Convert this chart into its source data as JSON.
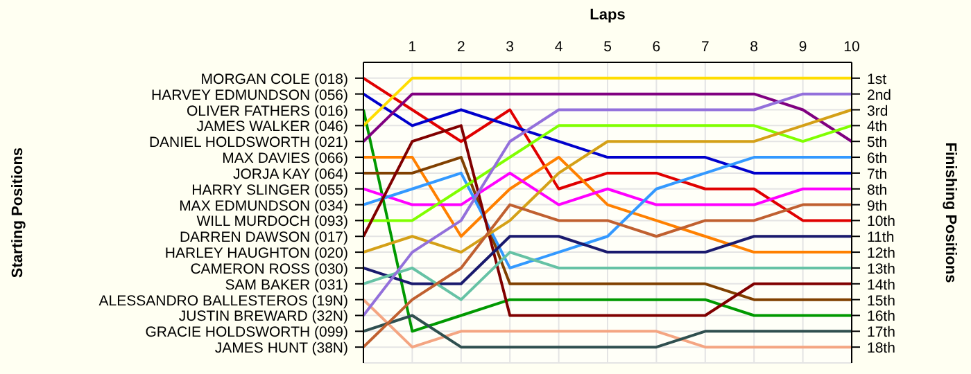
{
  "chart_data": {
    "type": "line",
    "xlabel": "Laps",
    "ylabel": "Finishing Positions",
    "annotations": [
      "Starting Positions"
    ],
    "x": [
      0,
      1,
      2,
      3,
      4,
      5,
      6,
      7,
      8,
      9,
      10
    ],
    "xlim": [
      0,
      10
    ],
    "xticks": [
      1,
      2,
      3,
      4,
      5,
      6,
      7,
      8,
      9,
      10
    ],
    "ylim": [
      19,
      0
    ],
    "yticks": [
      {
        "value": 1,
        "label": "1st"
      },
      {
        "value": 2,
        "label": "2nd"
      },
      {
        "value": 3,
        "label": "3rd"
      },
      {
        "value": 4,
        "label": "4th"
      },
      {
        "value": 5,
        "label": "5th"
      },
      {
        "value": 6,
        "label": "6th"
      },
      {
        "value": 7,
        "label": "7th"
      },
      {
        "value": 8,
        "label": "8th"
      },
      {
        "value": 9,
        "label": "9th"
      },
      {
        "value": 10,
        "label": "10th"
      },
      {
        "value": 11,
        "label": "11th"
      },
      {
        "value": 12,
        "label": "12th"
      },
      {
        "value": 13,
        "label": "13th"
      },
      {
        "value": 14,
        "label": "14th"
      },
      {
        "value": 15,
        "label": "15th"
      },
      {
        "value": 16,
        "label": "16th"
      },
      {
        "value": 17,
        "label": "17th"
      },
      {
        "value": 18,
        "label": "18th"
      }
    ],
    "grid": true,
    "line_style": "solid",
    "series": [
      {
        "name": "MORGAN COLE (018)",
        "color": "#e00000",
        "values": [
          1,
          3,
          5,
          3,
          8,
          7,
          7,
          8,
          8,
          10,
          10
        ]
      },
      {
        "name": "HARVEY EDMUNDSON (056)",
        "color": "#0000cc",
        "values": [
          2,
          4,
          3,
          4,
          5,
          6,
          6,
          6,
          7,
          7,
          7
        ]
      },
      {
        "name": "OLIVER FATHERS (016)",
        "color": "#009900",
        "values": [
          3,
          17,
          16,
          15,
          15,
          15,
          15,
          15,
          16,
          16,
          16
        ]
      },
      {
        "name": "JAMES WALKER (046)",
        "color": "#ffdd00",
        "values": [
          4,
          1,
          1,
          1,
          1,
          1,
          1,
          1,
          1,
          1,
          1
        ]
      },
      {
        "name": "DANIEL HOLDSWORTH (021)",
        "color": "#800080",
        "values": [
          5,
          2,
          2,
          2,
          2,
          2,
          2,
          2,
          2,
          3,
          5
        ]
      },
      {
        "name": "MAX DAVIES (066)",
        "color": "#ff8000",
        "values": [
          6,
          6,
          11,
          8,
          6,
          9,
          10,
          11,
          12,
          12,
          12
        ]
      },
      {
        "name": "JORJA KAY (064)",
        "color": "#804000",
        "values": [
          7,
          7,
          6,
          14,
          14,
          14,
          14,
          14,
          15,
          15,
          15
        ]
      },
      {
        "name": "HARRY SLINGER (055)",
        "color": "#ff00ff",
        "values": [
          8,
          9,
          9,
          7,
          9,
          8,
          9,
          9,
          9,
          8,
          8
        ]
      },
      {
        "name": "MAX EDMUNDSON (034)",
        "color": "#3399ff",
        "values": [
          9,
          8,
          7,
          13,
          12,
          11,
          8,
          7,
          6,
          6,
          6
        ]
      },
      {
        "name": "WILL MURDOCH (093)",
        "color": "#80ff00",
        "values": [
          10,
          10,
          8,
          6,
          4,
          4,
          4,
          4,
          4,
          5,
          4
        ]
      },
      {
        "name": "DARREN DAWSON (017)",
        "color": "#800000",
        "values": [
          11,
          5,
          4,
          16,
          16,
          16,
          16,
          16,
          14,
          14,
          14
        ]
      },
      {
        "name": "HARLEY HAUGHTON (020)",
        "color": "#d4a017",
        "values": [
          12,
          11,
          12,
          10,
          7,
          5,
          5,
          5,
          5,
          4,
          3
        ]
      },
      {
        "name": "CAMERON ROSS (030)",
        "color": "#1a1a6e",
        "values": [
          13,
          14,
          14,
          11,
          11,
          12,
          12,
          12,
          11,
          11,
          11
        ]
      },
      {
        "name": "SAM BAKER (031)",
        "color": "#66c2a5",
        "values": [
          14,
          13,
          15,
          12,
          13,
          13,
          13,
          13,
          13,
          13,
          13
        ]
      },
      {
        "name": "ALESSANDRO BALLESTEROS (19N)",
        "color": "#f4a582",
        "values": [
          15,
          18,
          17,
          17,
          17,
          17,
          17,
          18,
          18,
          18,
          18
        ]
      },
      {
        "name": "JUSTIN BREWARD (32N)",
        "color": "#9370db",
        "values": [
          16,
          12,
          10,
          5,
          3,
          3,
          3,
          3,
          3,
          2,
          2
        ]
      },
      {
        "name": "GRACIE HOLDSWORTH (099)",
        "color": "#2f4f4f",
        "values": [
          17,
          16,
          18,
          18,
          18,
          18,
          18,
          17,
          17,
          17,
          17
        ]
      },
      {
        "name": "JAMES HUNT (38N)",
        "color": "#c06030",
        "values": [
          18,
          15,
          13,
          9,
          10,
          10,
          11,
          10,
          10,
          9,
          9
        ]
      }
    ]
  }
}
